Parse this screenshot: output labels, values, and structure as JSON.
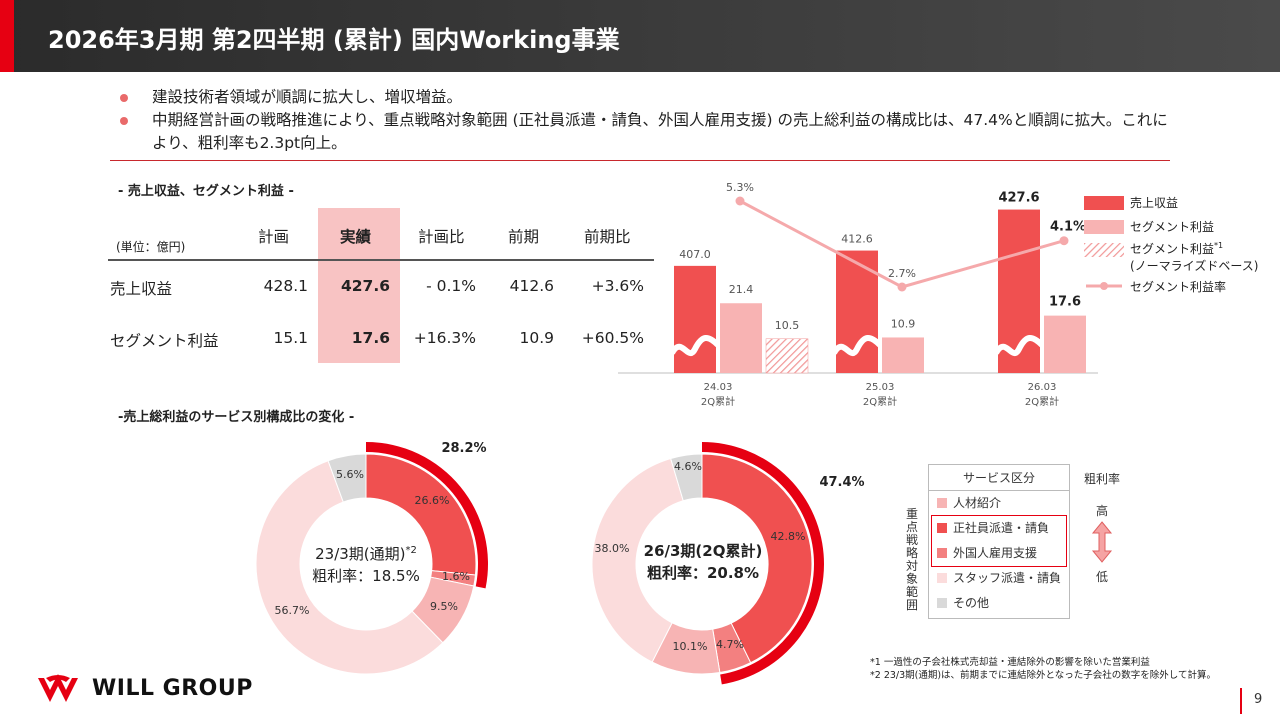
{
  "header": {
    "title": "2026年3月期 第2四半期 (累計) 国内Working事業"
  },
  "bullets": [
    "建設技術者領域が順調に拡大し、増収増益。",
    "中期経営計画の戦略推進により、重点戦略対象範囲 (正社員派遣・請負、外国人雇用支援) の売上総利益の構成比は、47.4%と順調に拡大。これにより、粗利率も2.3pt向上。"
  ],
  "table": {
    "section_title": "- 売上収益、セグメント利益 -",
    "unit_label": "(単位：億円)",
    "columns": [
      "計画",
      "実績",
      "計画比",
      "前期",
      "前期比"
    ],
    "rows": [
      {
        "label": "売上収益",
        "values": [
          "428.1",
          "427.6",
          "- 0.1%",
          "412.6",
          "+3.6%"
        ]
      },
      {
        "label": "セグメント利益",
        "values": [
          "15.1",
          "17.6",
          "+16.3%",
          "10.9",
          "+60.5%"
        ]
      }
    ]
  },
  "legend": {
    "revenue": "売上収益",
    "segment_profit": "セグメント利益",
    "normalized_line1": "セグメント利益",
    "normalized_sup": "*1",
    "normalized_line2": "(ノーマライズドベース)",
    "margin": "セグメント利益率"
  },
  "colors": {
    "red": "#e60012",
    "bar_red": "#f05050",
    "bar_pink": "#f8b3b3",
    "line_pink": "#f5a9ab",
    "donut_light": "#fbdcdc",
    "donut_mid": "#f7b4b4",
    "donut_gray": "#d9d9d9"
  },
  "donut_section_title": "-売上総利益のサービス別構成比の変化 -",
  "donut1": {
    "center_line1": "23/3期(通期)",
    "center_sup": "*2",
    "center_line2": "粗利率：18.5%",
    "focus_label": "28.2%",
    "labels": {
      "gray": "5.6%",
      "red": "26.6%",
      "mid": "1.6%",
      "pink": "9.5%",
      "light": "56.7%"
    }
  },
  "donut2": {
    "center_line1": "26/3期(2Q累計)",
    "center_line2": "粗利率：20.8%",
    "focus_label": "47.4%",
    "labels": {
      "gray": "4.6%",
      "red": "42.8%",
      "mid": "4.7%",
      "pink": "10.1%",
      "light": "38.0%"
    }
  },
  "service_legend": {
    "header": "サービス区分",
    "items": [
      "人材紹介",
      "正社員派遣・請負",
      "外国人雇用支援",
      "スタッフ派遣・請負",
      "その他"
    ],
    "vertical_label": "重点戦略対象範囲",
    "gm_title": "粗利率",
    "gm_high": "高",
    "gm_low": "低"
  },
  "footnotes": [
    "*1 一過性の子会社株式売却益・連結除外の影響を除いた営業利益",
    "*2 23/3期(通期)は、前期までに連結除外となった子会社の数字を除外して計算。"
  ],
  "footer": {
    "logo_text": "WILL GROUP",
    "page_number": "9"
  },
  "chart_data": [
    {
      "type": "bar",
      "title": "",
      "categories": [
        "24.03\n2Q累計",
        "25.03\n2Q累計",
        "26.03\n2Q累計"
      ],
      "category_labels": [
        [
          "24.03",
          "2Q累計"
        ],
        [
          "25.03",
          "2Q累計"
        ],
        [
          "26.03",
          "2Q累計"
        ]
      ],
      "series": [
        {
          "name": "売上収益",
          "values": [
            407.0,
            412.6,
            427.6
          ],
          "labels": [
            "407.0",
            "412.6",
            "427.6"
          ]
        },
        {
          "name": "セグメント利益",
          "values": [
            21.4,
            10.9,
            17.6
          ],
          "labels": [
            "21.4",
            "10.9",
            "17.6"
          ]
        },
        {
          "name": "セグメント利益(ノーマライズドベース)",
          "values": [
            10.5,
            null,
            null
          ],
          "labels": [
            "10.5",
            "",
            ""
          ]
        },
        {
          "name": "セグメント利益率",
          "type": "line",
          "values": [
            5.3,
            2.7,
            4.1
          ],
          "labels": [
            "5.3%",
            "2.7%",
            "4.1%"
          ]
        }
      ],
      "axis_break": true,
      "grid": false,
      "legend_position": "right"
    },
    {
      "type": "pie",
      "title": "23/3期(通期)",
      "donut": true,
      "slices": [
        {
          "name": "正社員派遣・請負",
          "value": 26.6
        },
        {
          "name": "外国人雇用支援",
          "value": 1.6
        },
        {
          "name": "人材紹介",
          "value": 9.5
        },
        {
          "name": "スタッフ派遣・請負",
          "value": 56.7
        },
        {
          "name": "その他",
          "value": 5.6
        }
      ],
      "highlight_total": 28.2
    },
    {
      "type": "pie",
      "title": "26/3期(2Q累計)",
      "donut": true,
      "slices": [
        {
          "name": "正社員派遣・請負",
          "value": 42.8
        },
        {
          "name": "外国人雇用支援",
          "value": 4.7
        },
        {
          "name": "人材紹介",
          "value": 10.1
        },
        {
          "name": "スタッフ派遣・請負",
          "value": 38.0
        },
        {
          "name": "その他",
          "value": 4.6
        }
      ],
      "highlight_total": 47.4
    }
  ]
}
